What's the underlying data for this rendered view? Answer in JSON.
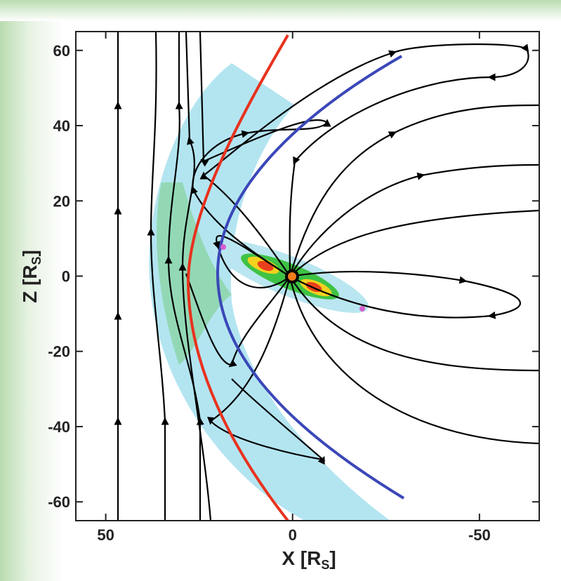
{
  "chart_data": {
    "type": "field",
    "xlabel": {
      "text": "X [R",
      "sub": "S",
      "close": "]"
    },
    "ylabel": {
      "text": "Z [R",
      "sub": "S",
      "close": "]"
    },
    "xlim": [
      58,
      -66
    ],
    "ylim": [
      -65,
      65
    ],
    "xticks": [
      50,
      0,
      -50
    ],
    "yticks": [
      -60,
      -40,
      -20,
      0,
      20,
      40,
      60
    ]
  }
}
